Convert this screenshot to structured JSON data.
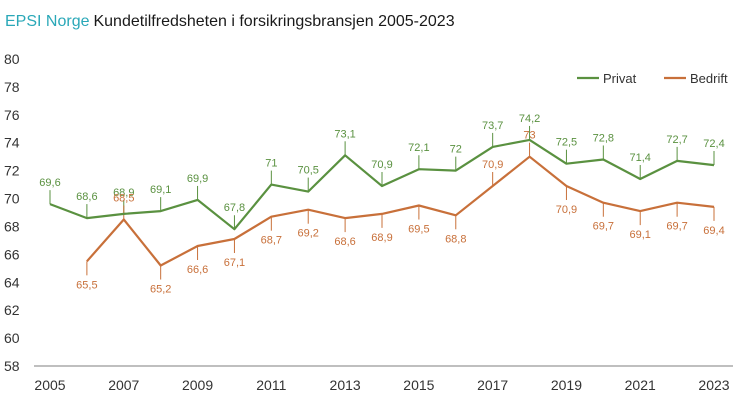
{
  "chart_data": {
    "type": "line",
    "title_brand": "EPSI Norge",
    "title": "Kundetilfredsheten i forsikringsbransjen 2005-2023",
    "x": [
      2005,
      2006,
      2007,
      2008,
      2009,
      2010,
      2011,
      2012,
      2013,
      2014,
      2015,
      2016,
      2017,
      2018,
      2019,
      2020,
      2021,
      2022,
      2023
    ],
    "x_tick_labels": [
      "2005",
      "2007",
      "2009",
      "2011",
      "2013",
      "2015",
      "2017",
      "2019",
      "2021",
      "2023"
    ],
    "ylim": [
      58,
      80
    ],
    "y_tick_labels": [
      "58",
      "60",
      "62",
      "64",
      "66",
      "68",
      "70",
      "72",
      "74",
      "76",
      "78",
      "80"
    ],
    "legend_position": "top-right",
    "series": [
      {
        "name": "Privat",
        "color": "#5a9140",
        "values": [
          69.6,
          68.6,
          68.9,
          69.1,
          69.9,
          67.8,
          71,
          70.5,
          73.1,
          70.9,
          72.1,
          72,
          73.7,
          74.2,
          72.5,
          72.8,
          71.4,
          72.7,
          72.4
        ],
        "labels": [
          "69,6",
          "68,6",
          "68,9",
          "69,1",
          "69,9",
          "67,8",
          "71",
          "70,5",
          "73,1",
          "70,9",
          "72,1",
          "72",
          "73,7",
          "74,2",
          "72,5",
          "72,8",
          "71,4",
          "72,7",
          "72,4"
        ]
      },
      {
        "name": "Bedrift",
        "color": "#c8703a",
        "values": [
          null,
          65.5,
          68.5,
          65.2,
          66.6,
          67.1,
          68.7,
          69.2,
          68.6,
          68.9,
          69.5,
          68.8,
          70.9,
          73,
          70.9,
          69.7,
          69.1,
          69.7,
          69.4
        ],
        "labels": [
          null,
          "65,5",
          "68,5",
          "65,2",
          "66,6",
          "67,1",
          "68,7",
          "69,2",
          "68,6",
          "68,9",
          "69,5",
          "68,8",
          "70,9",
          "73",
          "70,9",
          "69,7",
          "69,1",
          "69,7",
          "69,4"
        ]
      }
    ]
  },
  "colors": {
    "brand": "#2aa8b8",
    "title": "#1a1a1a",
    "axis": "#7f7f7f"
  }
}
